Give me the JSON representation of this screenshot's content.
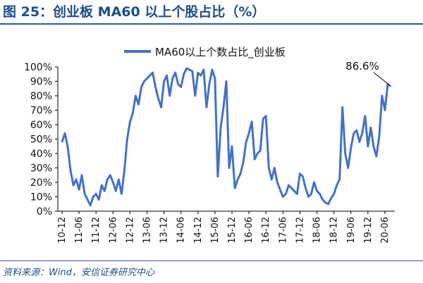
{
  "figure": {
    "title": "图 25：创业板 MA60 以上个股占比（%）",
    "source": "资料来源：Wind，安信证券研究中心"
  },
  "colors": {
    "accent": "#1f4e8c",
    "series": "#4472c4"
  },
  "chart_data": {
    "type": "line",
    "title": "",
    "xlabel": "",
    "ylabel": "",
    "ylim": [
      0,
      100
    ],
    "y_ticks": [
      "0%",
      "10%",
      "20%",
      "30%",
      "40%",
      "50%",
      "60%",
      "70%",
      "80%",
      "90%",
      "100%"
    ],
    "x_ticks": [
      "10-12",
      "11-06",
      "11-12",
      "12-06",
      "12-12",
      "13-06",
      "13-12",
      "14-06",
      "14-12",
      "15-06",
      "15-12",
      "16-06",
      "16-12",
      "17-06",
      "17-12",
      "18-06",
      "18-12",
      "19-06",
      "19-12",
      "20-06"
    ],
    "grid": false,
    "legend_position": "top",
    "annotation": {
      "text": "86.6%",
      "x": "2020-08",
      "y": 86.6
    },
    "series": [
      {
        "name": "MA60以上个数占比_创业板",
        "x": [
          "2010-12",
          "2011-01",
          "2011-02",
          "2011-03",
          "2011-04",
          "2011-05",
          "2011-06",
          "2011-07",
          "2011-08",
          "2011-09",
          "2011-10",
          "2011-11",
          "2011-12",
          "2012-01",
          "2012-02",
          "2012-03",
          "2012-04",
          "2012-05",
          "2012-06",
          "2012-07",
          "2012-08",
          "2012-09",
          "2012-10",
          "2012-11",
          "2012-12",
          "2013-01",
          "2013-02",
          "2013-03",
          "2013-04",
          "2013-05",
          "2013-06",
          "2013-07",
          "2013-08",
          "2013-09",
          "2013-10",
          "2013-11",
          "2013-12",
          "2014-01",
          "2014-02",
          "2014-03",
          "2014-04",
          "2014-05",
          "2014-06",
          "2014-07",
          "2014-08",
          "2014-09",
          "2014-10",
          "2014-11",
          "2014-12",
          "2015-01",
          "2015-02",
          "2015-03",
          "2015-04",
          "2015-05",
          "2015-06",
          "2015-07",
          "2015-08",
          "2015-09",
          "2015-10",
          "2015-11",
          "2015-12",
          "2016-01",
          "2016-02",
          "2016-03",
          "2016-04",
          "2016-05",
          "2016-06",
          "2016-07",
          "2016-08",
          "2016-09",
          "2016-10",
          "2016-11",
          "2016-12",
          "2017-01",
          "2017-02",
          "2017-03",
          "2017-04",
          "2017-05",
          "2017-06",
          "2017-07",
          "2017-08",
          "2017-09",
          "2017-10",
          "2017-11",
          "2017-12",
          "2018-01",
          "2018-02",
          "2018-03",
          "2018-04",
          "2018-05",
          "2018-06",
          "2018-07",
          "2018-08",
          "2018-09",
          "2018-10",
          "2018-11",
          "2018-12",
          "2019-01",
          "2019-02",
          "2019-03",
          "2019-04",
          "2019-05",
          "2019-06",
          "2019-07",
          "2019-08",
          "2019-09",
          "2019-10",
          "2019-11",
          "2019-12",
          "2020-01",
          "2020-02",
          "2020-03",
          "2020-04",
          "2020-05",
          "2020-06",
          "2020-07",
          "2020-08"
        ],
        "values": [
          48,
          54,
          45,
          28,
          18,
          22,
          15,
          25,
          12,
          8,
          4,
          10,
          12,
          8,
          18,
          14,
          22,
          25,
          20,
          14,
          22,
          12,
          28,
          50,
          62,
          68,
          80,
          74,
          86,
          90,
          92,
          94,
          96,
          86,
          78,
          72,
          90,
          94,
          80,
          92,
          96,
          88,
          86,
          95,
          99,
          98,
          97,
          80,
          96,
          94,
          98,
          72,
          88,
          98,
          92,
          24,
          58,
          72,
          90,
          30,
          45,
          16,
          22,
          26,
          34,
          48,
          54,
          62,
          36,
          40,
          42,
          64,
          66,
          30,
          22,
          30,
          20,
          15,
          10,
          12,
          18,
          16,
          14,
          12,
          26,
          24,
          16,
          10,
          12,
          20,
          14,
          12,
          8,
          6,
          5,
          9,
          12,
          18,
          22,
          72,
          40,
          30,
          44,
          54,
          56,
          48,
          54,
          66,
          45,
          58,
          45,
          38,
          52,
          80,
          70,
          88,
          86.6
        ]
      }
    ]
  }
}
